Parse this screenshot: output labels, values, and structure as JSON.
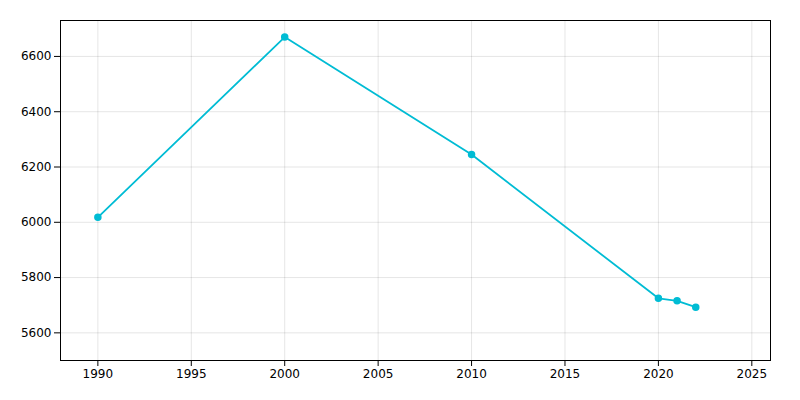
{
  "chart_data": {
    "type": "line",
    "x": [
      1990,
      2000,
      2010,
      2020,
      2021,
      2022
    ],
    "values": [
      6018,
      6670,
      6245,
      5725,
      5716,
      5693
    ],
    "color": "#00bcd4",
    "marker": "circle",
    "xlim": [
      1988,
      2026
    ],
    "xticks": [
      1990,
      1995,
      2000,
      2005,
      2010,
      2015,
      2020,
      2025
    ],
    "ylim": [
      5500,
      6730
    ],
    "yticks": [
      5600,
      5800,
      6000,
      6200,
      6400,
      6600
    ],
    "grid": true
  }
}
